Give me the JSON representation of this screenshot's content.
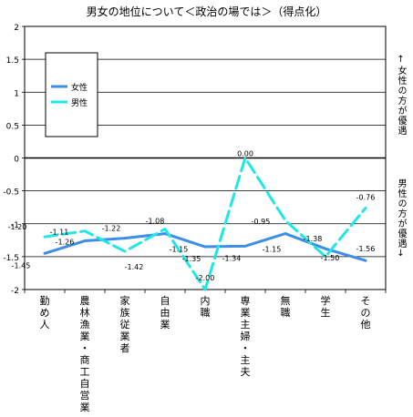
{
  "chart_data": {
    "type": "line",
    "title": "男女の地位について＜政治の場では＞（得点化）",
    "categories": [
      "勤め人",
      "農林漁業・商工自営業",
      "家族従業者",
      "自由業",
      "内職",
      "専業主婦・主夫",
      "無職",
      "学生",
      "その他"
    ],
    "series": [
      {
        "name": "女性",
        "color": "#3d8ee6",
        "dashed": false,
        "values": [
          -1.45,
          -1.26,
          -1.22,
          -1.15,
          -1.35,
          -1.34,
          -1.15,
          -1.38,
          -1.56
        ]
      },
      {
        "name": "男性",
        "color": "#20e6e6",
        "dashed": true,
        "values": [
          -1.2,
          -1.11,
          -1.42,
          -1.08,
          -2.0,
          0.0,
          -0.95,
          -1.5,
          -0.76
        ]
      }
    ],
    "label_text": {
      "女性": [
        "-1.45",
        "-1.26",
        "-1.22",
        "-1.15",
        "-1.35",
        "-1.34",
        "-1.15",
        "-1.38",
        "-1.56"
      ],
      "男性": [
        "-1.20",
        "-1.11",
        "-1.42",
        "-1.08",
        "-2.00",
        "0.00",
        "-0.95",
        "-1.50",
        "-0.76"
      ]
    },
    "y_ticks": [
      "2",
      "1.5",
      "1",
      "0.5",
      "0",
      "-0.5",
      "-1",
      "-1.5",
      "-2"
    ],
    "ylim": [
      -2,
      2
    ],
    "grid": true,
    "legend_position": "top-left",
    "side_label_top": "↑女性の方が優遇",
    "side_label_bottom": "男性の方が優遇↓"
  }
}
